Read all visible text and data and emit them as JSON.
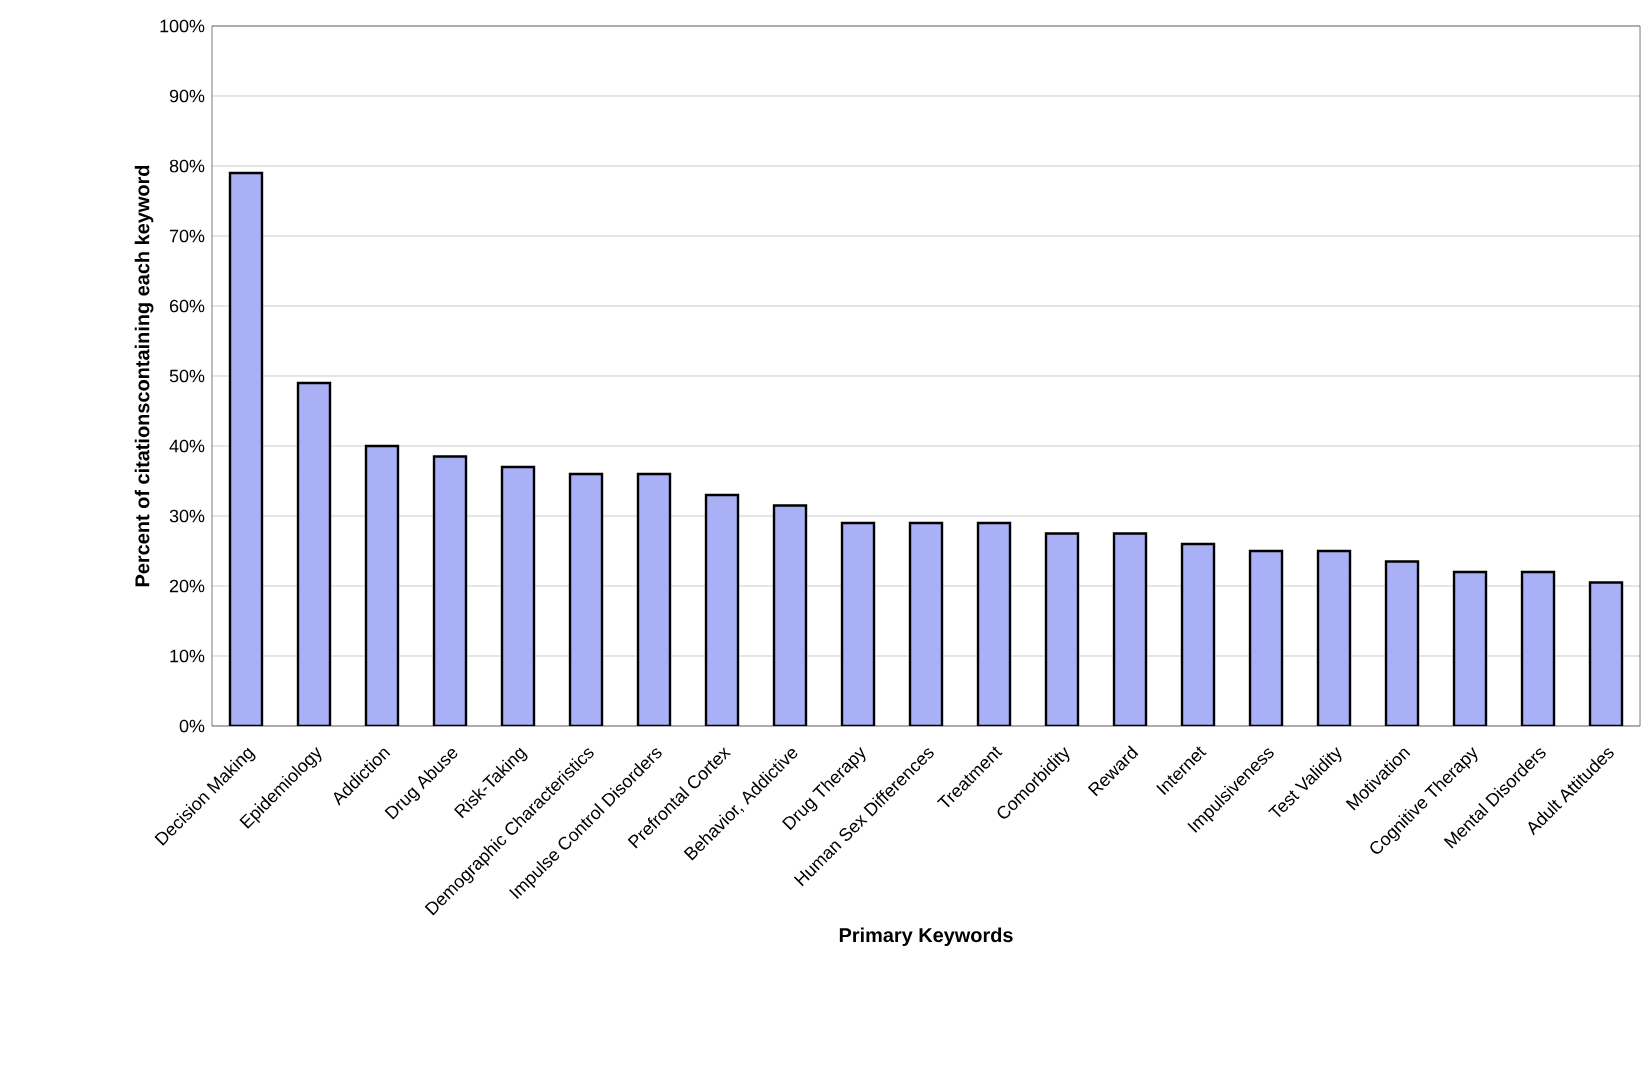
{
  "chart_data": {
    "type": "bar",
    "xlabel": "Primary Keywords",
    "ylabel": "Percent of citationscontaining each keyword",
    "categories": [
      "Decision Making",
      "Epidemiology",
      "Addiction",
      "Drug Abuse",
      "Risk-Taking",
      "Demographic Characteristics",
      "Impulse Control Disorders",
      "Prefrontal Cortex",
      "Behavior, Addictive",
      "Drug Therapy",
      "Human Sex Differences",
      "Treatment",
      "Comorbidity",
      "Reward",
      "Internet",
      "Impulsiveness",
      "Test Validity",
      "Motivation",
      "Cognitive Therapy",
      "Mental Disorders",
      "Adult Attitudes"
    ],
    "values": [
      79,
      49,
      40,
      38.5,
      37,
      36,
      36,
      33,
      31.5,
      29,
      29,
      29,
      27.5,
      27.5,
      26,
      25,
      25,
      23.5,
      22,
      22,
      20.5
    ],
    "color": "#a9b0f6",
    "ylim": [
      0,
      100
    ],
    "yticks": [
      {
        "value": 0,
        "label": "0%"
      },
      {
        "value": 10,
        "label": "10%"
      },
      {
        "value": 20,
        "label": "20%"
      },
      {
        "value": 30,
        "label": "30%"
      },
      {
        "value": 40,
        "label": "40%"
      },
      {
        "value": 50,
        "label": "50%"
      },
      {
        "value": 60,
        "label": "60%"
      },
      {
        "value": 70,
        "label": "70%"
      },
      {
        "value": 80,
        "label": "80%"
      },
      {
        "value": 90,
        "label": "90%"
      },
      {
        "value": 100,
        "label": "100%"
      }
    ],
    "grid": "y"
  }
}
